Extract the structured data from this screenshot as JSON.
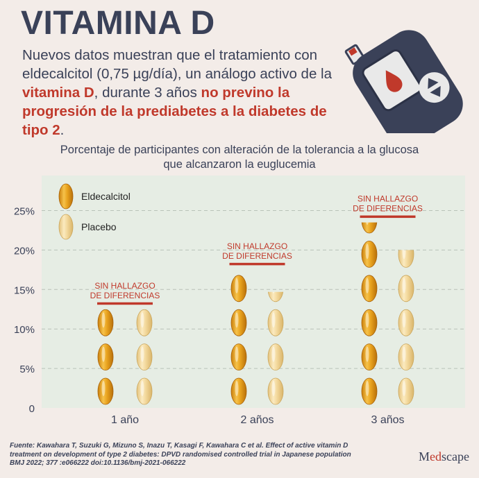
{
  "header": {
    "title": "VITAMINA D",
    "intro_parts": [
      {
        "text": "Nuevos datos muestran que el tratamiento con eldecalcitol (0,75 µg/día), un análogo activo de la ",
        "highlight": false
      },
      {
        "text": "vitamina D",
        "highlight": true
      },
      {
        "text": ", durante 3 años ",
        "highlight": false
      },
      {
        "text": "no previno la progresión de la prediabetes a la diabetes de tipo 2",
        "highlight": true
      },
      {
        "text": ".",
        "highlight": false
      }
    ]
  },
  "illustration": {
    "icon": "glucometer-icon"
  },
  "colors": {
    "background": "#f3ece8",
    "plot_background": "#e6ede4",
    "eldecalcitol": "#e8a21e",
    "placebo": "#f2d79a",
    "annotation": "#c0392b",
    "text_dark": "#3a4158"
  },
  "chart_data": {
    "type": "bar",
    "title": "Porcentaje de participantes con alteración de la tolerancia a la glucosa que alcanzaron la euglucemia",
    "categories": [
      "1 año",
      "2 años",
      "3 años"
    ],
    "series": [
      {
        "name": "Eldecalcitol",
        "values": [
          12.5,
          17.5,
          23.5
        ]
      },
      {
        "name": "Placebo",
        "values": [
          12.5,
          14.7,
          20.0
        ]
      }
    ],
    "y_ticks": [
      "0",
      "5%",
      "10%",
      "15%",
      "20%",
      "25%"
    ],
    "ylim": [
      0,
      28
    ],
    "grid": true,
    "legend_position": "top-left",
    "annotations": [
      {
        "category": "1 año",
        "text_line1": "SIN HALLAZGO",
        "text_line2": "DE DIFERENCIAS"
      },
      {
        "category": "2 años",
        "text_line1": "SIN HALLAZGO",
        "text_line2": "DE DIFERENCIAS"
      },
      {
        "category": "3 años",
        "text_line1": "SIN HALLAZGO",
        "text_line2": "DE DIFERENCIAS"
      }
    ]
  },
  "footer": {
    "source_lines": [
      "Fuente: Kawahara T, Suzuki G, Mizuno S, Inazu T, Kasagi F, Kawahara C et al. Effect of active vitamin D",
      "treatment on development of type 2 diabetes: DPVD randomised controlled trial in Japanese population",
      "BMJ 2022; 377 :e066222 doi:10.1136/bmj-2021-066222"
    ],
    "brand_prefix": "M",
    "brand_accent": "ed",
    "brand_suffix": "scape"
  }
}
